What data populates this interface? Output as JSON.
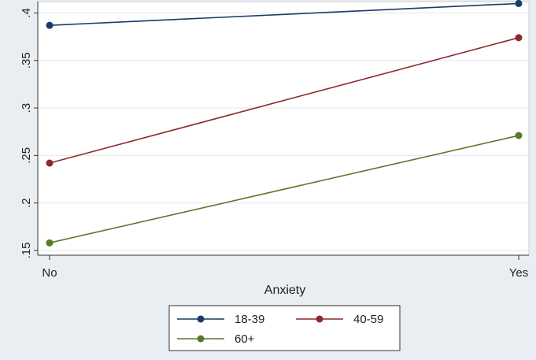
{
  "chart_data": {
    "type": "line",
    "title": "",
    "xlabel": "Anxiety",
    "ylabel": "",
    "categories": [
      "No",
      "Yes"
    ],
    "y_ticks": [
      ".15",
      ".2",
      ".25",
      ".3",
      ".35",
      ".4"
    ],
    "y_tick_values": [
      0.15,
      0.2,
      0.25,
      0.3,
      0.35,
      0.4
    ],
    "ylim": [
      0.145,
      0.412
    ],
    "grid": true,
    "legend_position": "bottom",
    "series": [
      {
        "name": "18-39",
        "values": [
          0.387,
          0.41
        ],
        "color": "#1a3a6b"
      },
      {
        "name": "40-59",
        "values": [
          0.242,
          0.374
        ],
        "color": "#8a2a2f"
      },
      {
        "name": "60+",
        "values": [
          0.158,
          0.271
        ],
        "color": "#5a7a2a"
      }
    ]
  }
}
